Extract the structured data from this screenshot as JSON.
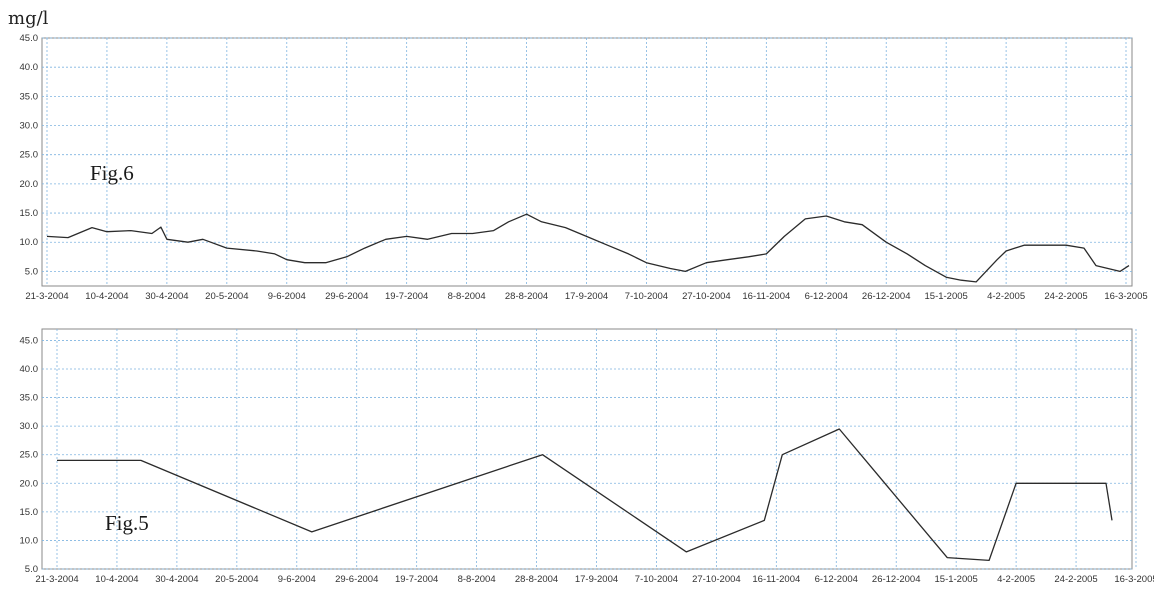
{
  "unit_label": "mg/l",
  "charts": [
    {
      "fig_label": "Fig.6"
    },
    {
      "fig_label": "Fig.5"
    }
  ],
  "chart_data": [
    {
      "type": "line",
      "title": "Fig.6",
      "ylabel": "mg/l",
      "ylim": [
        2.5,
        45.0
      ],
      "yticks": [
        "5.0",
        "10.0",
        "15.0",
        "20.0",
        "25.0",
        "30.0",
        "35.0",
        "40.0",
        "45.0"
      ],
      "xticks": [
        "21-3-2004",
        "10-4-2004",
        "30-4-2004",
        "20-5-2004",
        "9-6-2004",
        "29-6-2004",
        "19-7-2004",
        "8-8-2004",
        "28-8-2004",
        "17-9-2004",
        "7-10-2004",
        "27-10-2004",
        "16-11-2004",
        "6-12-2004",
        "26-12-2004",
        "15-1-2005",
        "4-2-2005",
        "24-2-2005",
        "16-3-2005"
      ],
      "grid": true,
      "series": [
        {
          "x": [
            "2004-03-21",
            "2004-03-28",
            "2004-04-05",
            "2004-04-10",
            "2004-04-18",
            "2004-04-25",
            "2004-04-28",
            "2004-04-30",
            "2004-05-07",
            "2004-05-12",
            "2004-05-20",
            "2004-05-30",
            "2004-06-05",
            "2004-06-09",
            "2004-06-15",
            "2004-06-22",
            "2004-06-29",
            "2004-07-05",
            "2004-07-12",
            "2004-07-19",
            "2004-07-26",
            "2004-08-03",
            "2004-08-10",
            "2004-08-17",
            "2004-08-22",
            "2004-08-28",
            "2004-09-02",
            "2004-09-10",
            "2004-09-17",
            "2004-09-24",
            "2004-10-01",
            "2004-10-07",
            "2004-10-15",
            "2004-10-20",
            "2004-10-27",
            "2004-11-03",
            "2004-11-10",
            "2004-11-16",
            "2004-11-22",
            "2004-11-29",
            "2004-12-06",
            "2004-12-12",
            "2004-12-18",
            "2004-12-26",
            "2005-01-02",
            "2005-01-08",
            "2005-01-15",
            "2005-01-20",
            "2005-01-25",
            "2005-02-01",
            "2005-02-04",
            "2005-02-10",
            "2005-02-17",
            "2005-02-24",
            "2005-03-02",
            "2005-03-06",
            "2005-03-10",
            "2005-03-14",
            "2005-03-17"
          ],
          "y": [
            11.0,
            10.8,
            12.5,
            11.8,
            12.0,
            11.5,
            12.6,
            10.5,
            10.0,
            10.5,
            9.0,
            8.5,
            8.0,
            7.0,
            6.5,
            6.5,
            7.5,
            9.0,
            10.5,
            11.0,
            10.5,
            11.5,
            11.5,
            12.0,
            13.5,
            14.8,
            13.5,
            12.5,
            11.0,
            9.5,
            8.0,
            6.5,
            5.5,
            5.0,
            6.5,
            7.0,
            7.5,
            8.0,
            11.0,
            14.0,
            14.5,
            13.5,
            13.0,
            10.0,
            8.0,
            6.0,
            4.0,
            3.5,
            3.2,
            7.0,
            8.5,
            9.5,
            9.5,
            9.5,
            9.0,
            6.0,
            5.5,
            5.0,
            6.0
          ]
        }
      ]
    },
    {
      "type": "line",
      "title": "Fig.5",
      "ylabel": "mg/l",
      "ylim": [
        5.0,
        47.0
      ],
      "yticks": [
        "5.0",
        "10.0",
        "15.0",
        "20.0",
        "25.0",
        "30.0",
        "35.0",
        "40.0",
        "45.0"
      ],
      "xticks": [
        "21-3-2004",
        "10-4-2004",
        "30-4-2004",
        "20-5-2004",
        "9-6-2004",
        "29-6-2004",
        "19-7-2004",
        "8-8-2004",
        "28-8-2004",
        "17-9-2004",
        "7-10-2004",
        "27-10-2004",
        "16-11-2004",
        "6-12-2004",
        "26-12-2004",
        "15-1-2005",
        "4-2-2005",
        "24-2-2005",
        "16-3-2005"
      ],
      "grid": true,
      "series": [
        {
          "x": [
            "2004-03-21",
            "2004-04-18",
            "2004-06-14",
            "2004-08-30",
            "2004-10-17",
            "2004-11-12",
            "2004-11-18",
            "2004-12-07",
            "2005-01-12",
            "2005-01-26",
            "2005-02-04",
            "2005-03-06",
            "2005-03-08"
          ],
          "y": [
            24.0,
            24.0,
            11.5,
            25.0,
            8.0,
            13.5,
            25.0,
            29.5,
            7.0,
            6.5,
            20.0,
            20.0,
            13.5
          ]
        }
      ]
    }
  ]
}
